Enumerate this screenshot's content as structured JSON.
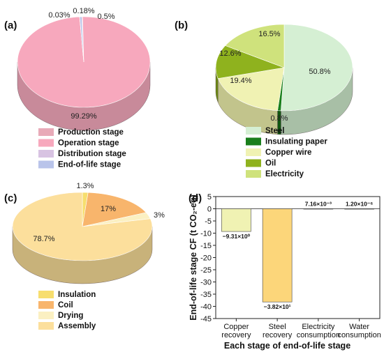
{
  "chart_data": [
    {
      "type": "pie",
      "panel_label": "(a)",
      "slices": [
        {
          "name": "Production stage",
          "value": 0.18,
          "label": "0.18%",
          "color": "#e8aab8",
          "side": "#b9889a"
        },
        {
          "name": "Operation stage",
          "value": 99.29,
          "label": "99.29%",
          "color": "#f7a8bd",
          "side": "#c88a9a"
        },
        {
          "name": "Distribution stage",
          "value": 0.03,
          "label": "0.03%",
          "color": "#d8c3e2",
          "side": "#a89bb3"
        },
        {
          "name": "End-of-life stage",
          "value": 0.5,
          "label": "0.5%",
          "color": "#b9c4ea",
          "side": "#8f98b8"
        }
      ],
      "legend": [
        "Production stage",
        "Operation stage",
        "Distribution stage",
        "End-of-life stage"
      ]
    },
    {
      "type": "pie",
      "panel_label": "(b)",
      "slices": [
        {
          "name": "Steel",
          "value": 50.8,
          "label": "50.8%",
          "color": "#d5efd3",
          "side": "#a8bfa6"
        },
        {
          "name": "Insulating paper",
          "value": 0.8,
          "label": "0.8%",
          "color": "#1a7f1c",
          "side": "#10560f"
        },
        {
          "name": "Copper wire",
          "value": 19.4,
          "label": "19.4%",
          "color": "#f0f2b3",
          "side": "#c2c48c"
        },
        {
          "name": "Oil",
          "value": 12.6,
          "label": "12.6%",
          "color": "#8fb21e",
          "side": "#6b8714"
        },
        {
          "name": "Electricity",
          "value": 16.5,
          "label": "16.5%",
          "color": "#cfe27c",
          "side": "#a2b35c"
        }
      ],
      "legend": [
        "Steel",
        "Insulating paper",
        "Copper wire",
        "Oil",
        "Electricity"
      ]
    },
    {
      "type": "pie",
      "panel_label": "(c)",
      "slices": [
        {
          "name": "Insulation",
          "value": 1.3,
          "label": "1.3%",
          "color": "#f7de6e",
          "side": "#c6ae4e"
        },
        {
          "name": "Coil",
          "value": 17.0,
          "label": "17%",
          "color": "#f8b56c",
          "side": "#c78a4c"
        },
        {
          "name": "Drying",
          "value": 3.0,
          "label": "3%",
          "color": "#fbf0c2",
          "side": "#c9bf96"
        },
        {
          "name": "Assembly",
          "value": 78.7,
          "label": "78.7%",
          "color": "#fcdf9c",
          "side": "#c8b27a"
        }
      ],
      "legend": [
        "Insulation",
        "Coil",
        "Drying",
        "Assembly"
      ]
    },
    {
      "type": "bar",
      "panel_label": "(d)",
      "categories": [
        "Copper recovery",
        "Steel recovery",
        "Electricity consumption",
        "Water consumption"
      ],
      "category_lines": [
        [
          "Copper",
          "recovery"
        ],
        [
          "Steel",
          "recovery"
        ],
        [
          "Electricity",
          "consumption"
        ],
        [
          "Water",
          "consumption"
        ]
      ],
      "values": [
        -9.31,
        -38.2,
        0.00716,
        1.2e-06
      ],
      "bar_labels": [
        "−9.31×10⁰",
        "−3.82×10¹",
        "7.16×10⁻³",
        "1.20×10⁻⁶"
      ],
      "colors": [
        "#f0f2b3",
        "#fcd67a",
        "#cde8c8",
        "#cde8c8"
      ],
      "xlabel": "Each stage of end-of-life stage",
      "ylabel": "End-of-life stage CF (t CO₂-eq)",
      "ylim": [
        -45,
        5
      ],
      "yticks": [
        5,
        0,
        -5,
        -10,
        -15,
        -20,
        -25,
        -30,
        -35,
        -40,
        -45
      ],
      "grid": false
    }
  ]
}
